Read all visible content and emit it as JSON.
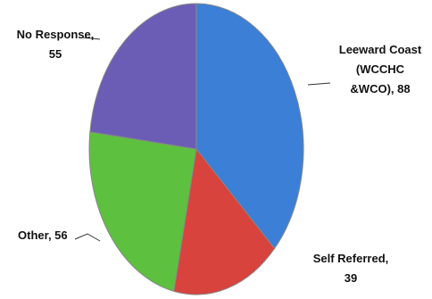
{
  "chart_data": {
    "type": "pie",
    "values": [
      88,
      39,
      56,
      55
    ],
    "value_labels": [
      [
        "Leeward Coast",
        "(WCCHC",
        "&WCO), 88"
      ],
      [
        "Self Referred,",
        "39"
      ],
      [
        "Other, 56"
      ],
      [
        "No Response,",
        "55"
      ]
    ],
    "colors": [
      "#3b7fd6",
      "#d8433d",
      "#5dc03f",
      "#6b5db6"
    ],
    "start_angle": 0,
    "direction": "clockwise"
  }
}
